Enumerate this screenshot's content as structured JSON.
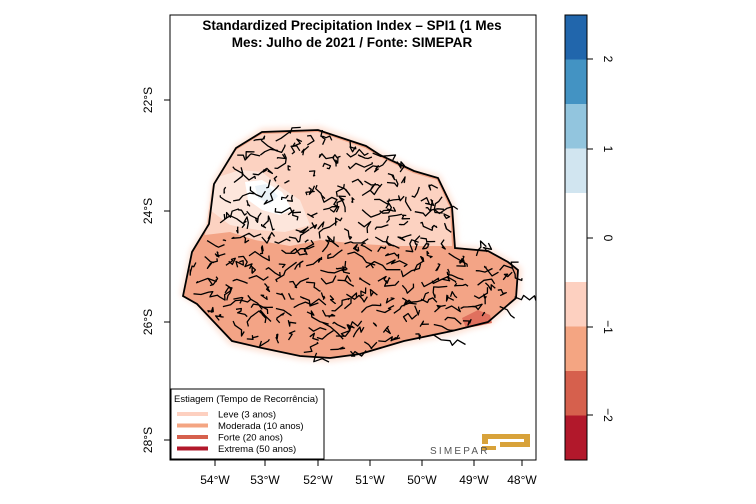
{
  "title": {
    "line1": "Standardized Precipitation Index – SPI1 (1 Mes",
    "line2": "Mes: Julho de 2021 / Fonte: SIMEPAR"
  },
  "axes": {
    "x_ticks": [
      "54°W",
      "53°W",
      "52°W",
      "51°W",
      "50°W",
      "49°W",
      "48°W"
    ],
    "y_ticks": [
      "22°S",
      "24°S",
      "26°S",
      "28°S"
    ]
  },
  "legend": {
    "title": "Estiagem (Tempo de Recorrência)",
    "items": [
      {
        "label": "Leve (3 anos)",
        "color": "#fdd0c0"
      },
      {
        "label": "Moderada (10 anos)",
        "color": "#f4a582"
      },
      {
        "label": "Forte (20 anos)",
        "color": "#d6604d"
      },
      {
        "label": "Extrema (50 anos)",
        "color": "#b2182b"
      }
    ]
  },
  "logo": {
    "text": "SIMEPAR"
  },
  "colorbar": {
    "ticks": [
      "2",
      "1",
      "0",
      "−1",
      "−2"
    ],
    "bins": [
      {
        "from": 2.0,
        "to": 2.5,
        "color": "#2166ac"
      },
      {
        "from": 1.5,
        "to": 2.0,
        "color": "#4393c3"
      },
      {
        "from": 1.0,
        "to": 1.5,
        "color": "#92c5de"
      },
      {
        "from": 0.5,
        "to": 1.0,
        "color": "#d1e5f0"
      },
      {
        "from": -0.5,
        "to": 0.5,
        "color": "#ffffff"
      },
      {
        "from": -1.0,
        "to": -0.5,
        "color": "#fdd0c0"
      },
      {
        "from": -1.5,
        "to": -1.0,
        "color": "#f4a582"
      },
      {
        "from": -2.0,
        "to": -1.5,
        "color": "#d6604d"
      },
      {
        "from": -2.5,
        "to": -2.0,
        "color": "#b2182b"
      }
    ]
  },
  "map_colors": {
    "moderate": "#f3a486",
    "light": "#fcd2c1",
    "pale": "#fde6dc",
    "near_normal": "#ffffff",
    "wet_light": "#eaf2f8",
    "strong": "#e0705e",
    "halo": "#fde2d6"
  }
}
